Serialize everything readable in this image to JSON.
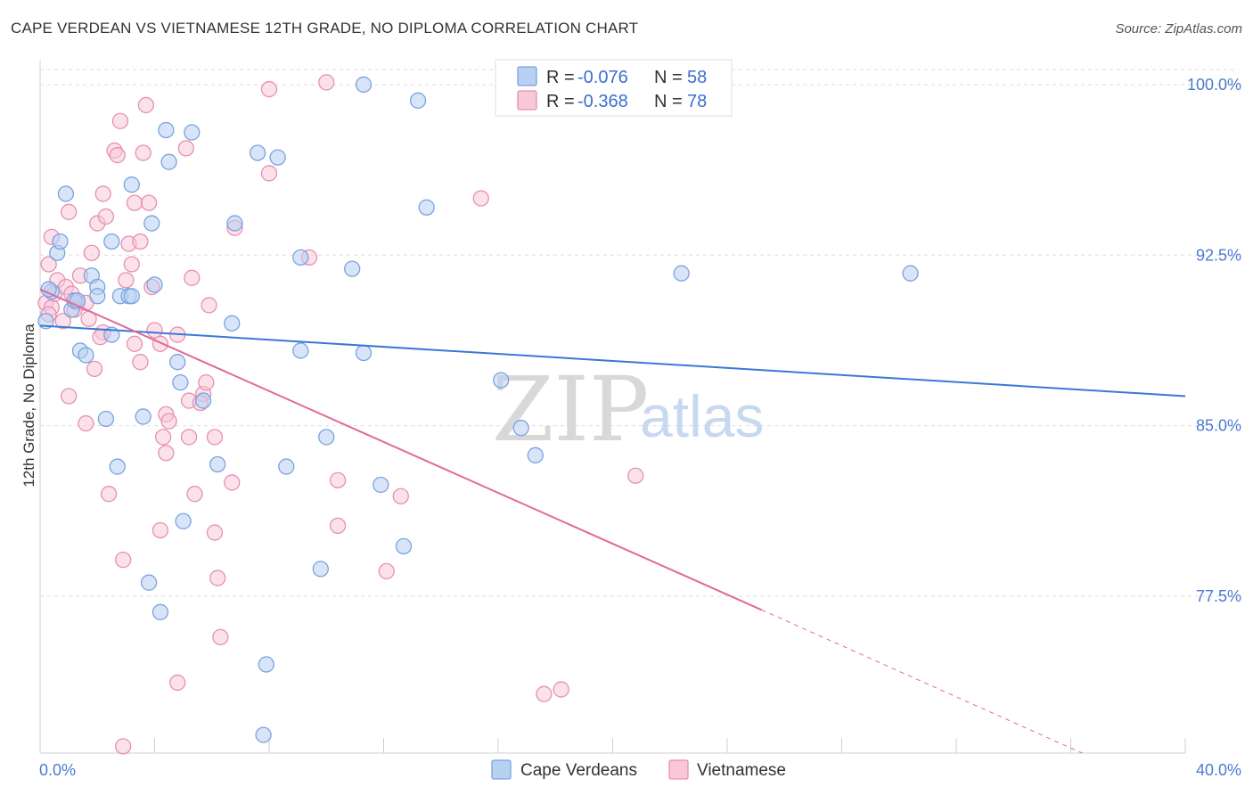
{
  "header": {
    "title": "CAPE VERDEAN VS VIETNAMESE 12TH GRADE, NO DIPLOMA CORRELATION CHART",
    "source": "Source: ZipAtlas.com"
  },
  "watermark": {
    "zip": "ZIP",
    "atlas": "atlas"
  },
  "colors": {
    "blue_fill": "#b8d0f2",
    "blue_stroke": "#7aa3e0",
    "blue_line": "#3a78d4",
    "pink_fill": "#f8c8d8",
    "pink_stroke": "#e890b0",
    "pink_line": "#e06a98",
    "grid": "#dddddd",
    "axis_text": "#4a7bd0"
  },
  "legend": {
    "r_label": "R =",
    "n_label": "N =",
    "entries": [
      {
        "r": "-0.076",
        "n": "58"
      },
      {
        "r": "-0.368",
        "n": "78"
      }
    ]
  },
  "chart_data": {
    "type": "scatter",
    "title": "CAPE VERDEAN VS VIETNAMESE 12TH GRADE, NO DIPLOMA CORRELATION CHART",
    "xlabel": "",
    "ylabel": "12th Grade, No Diploma",
    "xlim": [
      0,
      40
    ],
    "ylim": [
      70.6,
      100.9
    ],
    "x_tick_labels": [
      "0.0%",
      "40.0%"
    ],
    "y_ticks": [
      77.5,
      85.0,
      92.5,
      100.0
    ],
    "y_tick_labels": [
      "77.5%",
      "85.0%",
      "92.5%",
      "100.0%"
    ],
    "grid": true,
    "legend_position": "top-center",
    "series": [
      {
        "name": "Cape Verdeans",
        "color": "#7aa3e0",
        "trend": {
          "x": [
            0,
            40
          ],
          "y": [
            89.4,
            86.3
          ]
        },
        "points": [
          [
            0.2,
            89.6
          ],
          [
            0.4,
            90.9
          ],
          [
            0.6,
            92.6
          ],
          [
            0.7,
            93.1
          ],
          [
            0.9,
            95.2
          ],
          [
            1.1,
            90.1
          ],
          [
            1.2,
            90.5
          ],
          [
            1.4,
            88.3
          ],
          [
            1.6,
            88.1
          ],
          [
            1.8,
            91.6
          ],
          [
            2.0,
            91.1
          ],
          [
            2.0,
            90.7
          ],
          [
            2.3,
            85.3
          ],
          [
            2.5,
            89.0
          ],
          [
            2.5,
            93.1
          ],
          [
            2.7,
            83.2
          ],
          [
            2.8,
            90.7
          ],
          [
            3.1,
            90.7
          ],
          [
            3.2,
            95.6
          ],
          [
            3.2,
            90.7
          ],
          [
            3.6,
            85.4
          ],
          [
            3.8,
            78.1
          ],
          [
            3.9,
            93.9
          ],
          [
            4.0,
            91.2
          ],
          [
            4.2,
            76.8
          ],
          [
            4.4,
            98.0
          ],
          [
            4.5,
            96.6
          ],
          [
            4.8,
            87.8
          ],
          [
            4.9,
            86.9
          ],
          [
            5.0,
            80.8
          ],
          [
            5.3,
            97.9
          ],
          [
            5.7,
            86.1
          ],
          [
            6.2,
            83.3
          ],
          [
            6.7,
            89.5
          ],
          [
            6.8,
            93.9
          ],
          [
            7.6,
            97.0
          ],
          [
            7.8,
            71.4
          ],
          [
            7.9,
            74.5
          ],
          [
            8.3,
            96.8
          ],
          [
            8.6,
            83.2
          ],
          [
            9.1,
            92.4
          ],
          [
            9.1,
            88.3
          ],
          [
            9.8,
            78.7
          ],
          [
            10.0,
            84.5
          ],
          [
            10.9,
            91.9
          ],
          [
            11.3,
            88.2
          ],
          [
            11.3,
            100.0
          ],
          [
            11.9,
            82.4
          ],
          [
            12.7,
            79.7
          ],
          [
            13.2,
            99.3
          ],
          [
            13.5,
            94.6
          ],
          [
            16.1,
            87.0
          ],
          [
            16.8,
            84.9
          ],
          [
            17.3,
            83.7
          ],
          [
            22.4,
            91.7
          ],
          [
            30.4,
            91.7
          ],
          [
            0.3,
            91.0
          ],
          [
            1.3,
            90.5
          ]
        ]
      },
      {
        "name": "Vietnamese",
        "color": "#e890b0",
        "trend": {
          "x": [
            0,
            25.2
          ],
          "y": [
            91.0,
            76.9
          ]
        },
        "trend_dashed": {
          "x": [
            25.2,
            36.4
          ],
          "y": [
            76.9,
            70.6
          ]
        },
        "points": [
          [
            0.2,
            90.4
          ],
          [
            0.3,
            92.1
          ],
          [
            0.4,
            93.3
          ],
          [
            0.4,
            90.2
          ],
          [
            0.5,
            90.8
          ],
          [
            0.6,
            91.4
          ],
          [
            0.8,
            89.6
          ],
          [
            0.9,
            91.1
          ],
          [
            1.0,
            86.3
          ],
          [
            1.0,
            94.4
          ],
          [
            1.1,
            90.8
          ],
          [
            1.3,
            90.4
          ],
          [
            1.4,
            91.6
          ],
          [
            1.6,
            90.4
          ],
          [
            1.6,
            85.1
          ],
          [
            1.7,
            89.7
          ],
          [
            1.8,
            92.6
          ],
          [
            1.9,
            87.5
          ],
          [
            2.0,
            93.9
          ],
          [
            2.2,
            95.2
          ],
          [
            2.2,
            89.1
          ],
          [
            2.3,
            94.2
          ],
          [
            2.4,
            82.0
          ],
          [
            2.6,
            97.1
          ],
          [
            2.7,
            96.9
          ],
          [
            2.8,
            98.4
          ],
          [
            2.9,
            79.1
          ],
          [
            2.9,
            70.9
          ],
          [
            3.1,
            93.0
          ],
          [
            3.2,
            92.1
          ],
          [
            3.3,
            88.6
          ],
          [
            3.3,
            94.8
          ],
          [
            3.5,
            93.1
          ],
          [
            3.5,
            87.8
          ],
          [
            3.6,
            97.0
          ],
          [
            3.7,
            99.1
          ],
          [
            3.8,
            94.8
          ],
          [
            3.9,
            91.1
          ],
          [
            4.2,
            80.4
          ],
          [
            4.2,
            88.6
          ],
          [
            4.3,
            84.5
          ],
          [
            4.4,
            83.8
          ],
          [
            4.4,
            85.5
          ],
          [
            4.5,
            85.2
          ],
          [
            4.8,
            73.7
          ],
          [
            4.8,
            89.0
          ],
          [
            5.1,
            97.2
          ],
          [
            5.2,
            84.5
          ],
          [
            5.2,
            86.1
          ],
          [
            5.3,
            91.5
          ],
          [
            5.4,
            82.0
          ],
          [
            5.7,
            86.4
          ],
          [
            5.8,
            86.9
          ],
          [
            5.9,
            90.3
          ],
          [
            6.1,
            84.5
          ],
          [
            6.1,
            80.3
          ],
          [
            6.2,
            78.3
          ],
          [
            6.3,
            75.7
          ],
          [
            6.7,
            82.5
          ],
          [
            6.8,
            93.7
          ],
          [
            8.0,
            96.1
          ],
          [
            8.0,
            99.8
          ],
          [
            9.4,
            92.4
          ],
          [
            10.0,
            100.1
          ],
          [
            10.4,
            82.6
          ],
          [
            10.4,
            80.6
          ],
          [
            12.1,
            78.6
          ],
          [
            12.6,
            81.9
          ],
          [
            15.4,
            95.0
          ],
          [
            17.6,
            73.2
          ],
          [
            18.2,
            73.4
          ],
          [
            20.8,
            82.8
          ],
          [
            0.3,
            89.9
          ],
          [
            1.2,
            90.1
          ],
          [
            2.1,
            88.9
          ],
          [
            3.0,
            91.4
          ],
          [
            4.0,
            89.2
          ],
          [
            5.6,
            86.0
          ]
        ]
      }
    ]
  }
}
